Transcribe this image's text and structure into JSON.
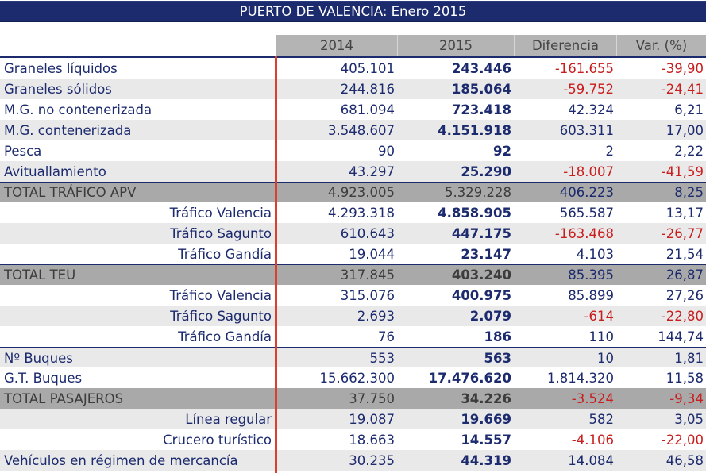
{
  "title": "PUERTO DE VALENCIA: Enero 2015",
  "columns": [
    "2014",
    "2015",
    "Diferencia",
    "Var. (%)"
  ],
  "rows": [
    {
      "label": "Graneles líquidos",
      "v2014": "405.101",
      "v2015": "243.446",
      "diferencia": "-161.655",
      "var": "-39,90"
    },
    {
      "label": "Graneles sólidos",
      "v2014": "244.816",
      "v2015": "185.064",
      "diferencia": "-59.752",
      "var": "-24,41"
    },
    {
      "label": "M.G. no contenerizada",
      "v2014": "681.094",
      "v2015": "723.418",
      "diferencia": "42.324",
      "var": "6,21"
    },
    {
      "label": "M.G. contenerizada",
      "v2014": "3.548.607",
      "v2015": "4.151.918",
      "diferencia": "603.311",
      "var": "17,00"
    },
    {
      "label": "Pesca",
      "v2014": "90",
      "v2015": "92",
      "diferencia": "2",
      "var": "2,22"
    },
    {
      "label": "Avituallamiento",
      "v2014": "43.297",
      "v2015": "25.290",
      "diferencia": "-18.007",
      "var": "-41,59"
    },
    {
      "label": "TOTAL TRÁFICO APV",
      "v2014": "4.923.005",
      "v2015": "5.329.228",
      "diferencia": "406.223",
      "var": "8,25"
    },
    {
      "label": "Tráfico Valencia",
      "v2014": "4.293.318",
      "v2015": "4.858.905",
      "diferencia": "565.587",
      "var": "13,17"
    },
    {
      "label": "Tráfico Sagunto",
      "v2014": "610.643",
      "v2015": "447.175",
      "diferencia": "-163.468",
      "var": "-26,77"
    },
    {
      "label": "Tráfico Gandía",
      "v2014": "19.044",
      "v2015": "23.147",
      "diferencia": "4.103",
      "var": "21,54"
    },
    {
      "label": "TOTAL TEU",
      "v2014": "317.845",
      "v2015": "403.240",
      "diferencia": "85.395",
      "var": "26,87"
    },
    {
      "label": "Tráfico Valencia",
      "v2014": "315.076",
      "v2015": "400.975",
      "diferencia": "85.899",
      "var": "27,26"
    },
    {
      "label": "Tráfico Sagunto",
      "v2014": "2.693",
      "v2015": "2.079",
      "diferencia": "-614",
      "var": "-22,80"
    },
    {
      "label": "Tráfico Gandía",
      "v2014": "76",
      "v2015": "186",
      "diferencia": "110",
      "var": "144,74"
    },
    {
      "label": "Nº Buques",
      "v2014": "553",
      "v2015": "563",
      "diferencia": "10",
      "var": "1,81"
    },
    {
      "label": "G.T. Buques",
      "v2014": "15.662.300",
      "v2015": "17.476.620",
      "diferencia": "1.814.320",
      "var": "11,58"
    },
    {
      "label": "TOTAL PASAJEROS",
      "v2014": "37.750",
      "v2015": "34.226",
      "diferencia": "-3.524",
      "var": "-9,34"
    },
    {
      "label": "Línea regular",
      "v2014": "19.087",
      "v2015": "19.669",
      "diferencia": "582",
      "var": "3,05"
    },
    {
      "label": "Crucero turístico",
      "v2014": "18.663",
      "v2015": "14.557",
      "diferencia": "-4.106",
      "var": "-22,00"
    },
    {
      "label": "Vehículos en régimen de mercancía",
      "v2014": "30.235",
      "v2015": "44.319",
      "diferencia": "14.084",
      "var": "46,58"
    }
  ],
  "colors": {
    "navy": "#1c2a6e",
    "negative_red": "#c81e1e",
    "divider_red": "#d9402e",
    "total_gray": "#a9a9a9",
    "header_gray": "#b4b4b4",
    "alt_row": "#e9e9e9"
  }
}
